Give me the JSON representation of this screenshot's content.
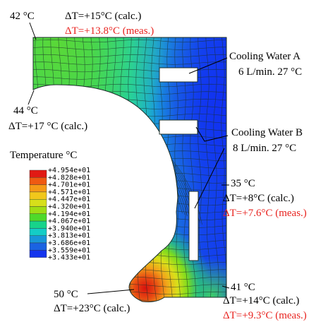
{
  "figure": {
    "labels": {
      "top_left_temp": "42 °C",
      "top_dt_calc": "ΔT=+15°C (calc.)",
      "top_dt_meas": "ΔT=+13.8°C (meas.)",
      "left_temp": "44 °C",
      "left_dt_calc": "ΔT=+17 °C (calc.)",
      "cooling_a_title": "Cooling Water A",
      "cooling_a_spec": "6 L/min. 27 °C",
      "cooling_b_title": "Cooling Water B",
      "cooling_b_spec": "8 L/min. 27 °C",
      "right_mid_temp": "35 °C",
      "right_mid_dt_calc": "ΔT=+8°C (calc.)",
      "right_mid_dt_meas": "ΔT=+7.6°C (meas.)",
      "right_bot_temp": "41 °C",
      "right_bot_dt_calc": "ΔT=+14°C (calc.)",
      "right_bot_dt_meas": "ΔT=+9.3°C (meas.)",
      "bottom_temp": "50 °C",
      "bottom_dt_calc": "ΔT=+23°C (calc.)"
    },
    "legend": {
      "title": "Temperature °C",
      "values": [
        "+4.954e+01",
        "+4.828e+01",
        "+4.701e+01",
        "+4.571e+01",
        "+4.447e+01",
        "+4.320e+01",
        "+4.194e+01",
        "+4.067e+01",
        "+3.940e+01",
        "+3.813e+01",
        "+3.686e+01",
        "+3.559e+01",
        "+3.433e+01"
      ],
      "colors": [
        "#e11a14",
        "#ef5a12",
        "#f59a17",
        "#f1c71b",
        "#d7df1a",
        "#9fdd14",
        "#4fd92a",
        "#17d38a",
        "#14cdc6",
        "#1896d9",
        "#1a63e2",
        "#1434ee"
      ]
    },
    "colors": {
      "annotation": "#000000",
      "measured": "#e8231f",
      "mesh_line": "#1b2f2a"
    }
  }
}
